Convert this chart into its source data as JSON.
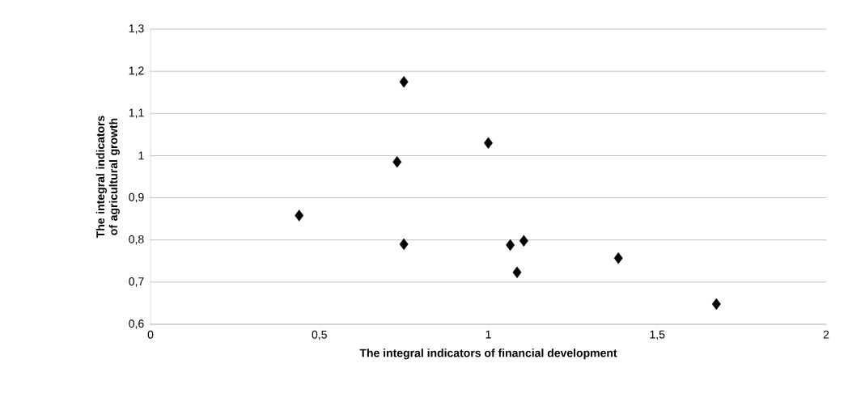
{
  "chart_data": {
    "type": "scatter",
    "xlabel": "The integral indicators of financial development",
    "ylabel": "The integral indicators of agricultural growth",
    "x": [
      0.75,
      1.0,
      0.73,
      0.44,
      0.75,
      1.065,
      1.105,
      1.085,
      1.385,
      1.675
    ],
    "values": [
      1.175,
      1.03,
      0.985,
      0.858,
      0.79,
      0.788,
      0.798,
      0.723,
      0.757,
      0.648
    ],
    "color": "#000000",
    "marker": "diamond",
    "xlim": [
      0,
      2
    ],
    "xticks": [
      0,
      {
        "value": 0.5,
        "label": "0,5"
      },
      1,
      {
        "value": 1.5,
        "label": "1,5"
      },
      2
    ],
    "ylim": [
      0.6,
      1.3
    ],
    "yticks": [
      {
        "value": 0.6,
        "label": "0,6"
      },
      {
        "value": 0.7,
        "label": "0,7"
      },
      {
        "value": 0.8,
        "label": "0,8"
      },
      {
        "value": 0.9,
        "label": "0,9"
      },
      1,
      {
        "value": 1.1,
        "label": "1,1"
      },
      {
        "value": 1.2,
        "label": "1,2"
      },
      {
        "value": 1.3,
        "label": "1,3"
      }
    ],
    "grid": "y"
  }
}
